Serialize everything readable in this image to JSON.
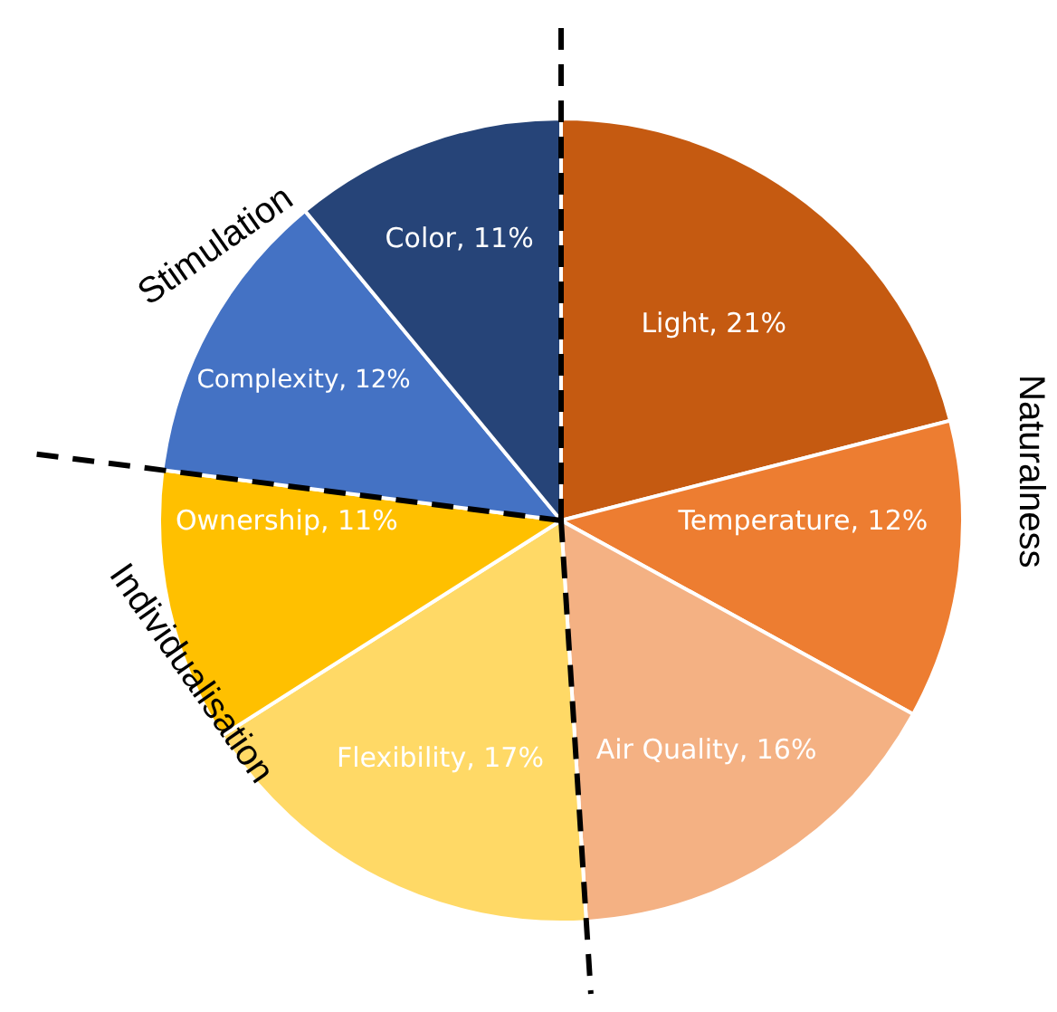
{
  "chart_data": {
    "type": "pie",
    "categories": [
      "Light",
      "Temperature",
      "Air Quality",
      "Flexibility",
      "Ownership",
      "Complexity",
      "Color"
    ],
    "values": [
      21,
      12,
      16,
      17,
      11,
      12,
      11
    ],
    "colors": [
      "#c55a11",
      "#ed7d31",
      "#f4b183",
      "#ffd966",
      "#ffc000",
      "#4472c4",
      "#264478"
    ],
    "value_labels": [
      "21%",
      "12%",
      "16%",
      "17%",
      "11%",
      "12%",
      "11%"
    ],
    "annotations": [
      "Naturalness",
      "Individualisation",
      "Stimulation"
    ],
    "legend": false
  }
}
